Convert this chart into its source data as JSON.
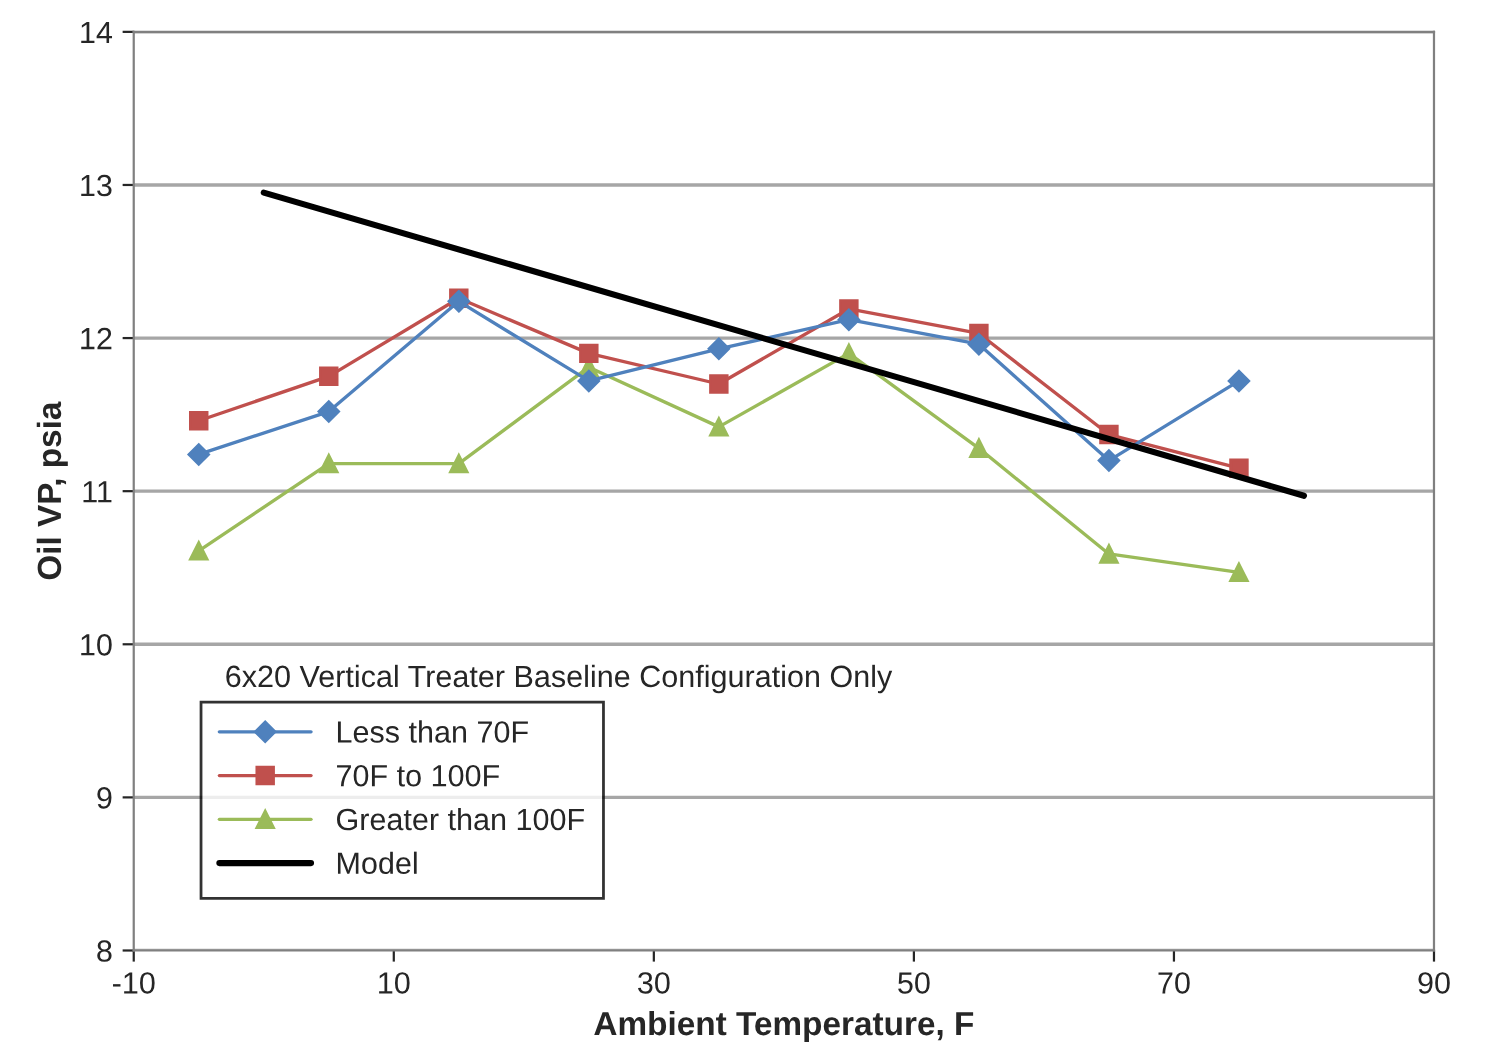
{
  "chart_data": {
    "type": "line",
    "xlabel": "Ambient Temperature, F",
    "ylabel": "Oil VP, psia",
    "annotations": [
      "6x20 Vertical Treater Baseline Configuration Only"
    ],
    "xlim": [
      -10,
      90
    ],
    "xticks": [
      -10,
      10,
      30,
      50,
      70,
      90
    ],
    "ylim": [
      8,
      14
    ],
    "yticks": [
      8,
      9,
      10,
      11,
      12,
      13,
      14
    ],
    "grid": "y",
    "legend": "bottom left",
    "series": [
      {
        "name": "Less than 70F",
        "color": "#4f81bd",
        "marker": "diamond",
        "x": [
          -5,
          5,
          15,
          25,
          35,
          45,
          55,
          65,
          75
        ],
        "values": [
          11.24,
          11.52,
          12.24,
          11.72,
          11.93,
          12.12,
          11.96,
          11.2,
          11.72
        ]
      },
      {
        "name": "70F to 100F",
        "color": "#c0504d",
        "marker": "square",
        "x": [
          -5,
          5,
          15,
          25,
          35,
          45,
          55,
          65,
          75
        ],
        "values": [
          11.46,
          11.75,
          12.26,
          11.9,
          11.7,
          12.19,
          12.03,
          11.37,
          11.15
        ]
      },
      {
        "name": "Greater than 100F",
        "color": "#9bbb59",
        "marker": "triangle",
        "x": [
          -5,
          5,
          15,
          25,
          35,
          45,
          55,
          65,
          75
        ],
        "values": [
          10.61,
          11.18,
          11.18,
          11.81,
          11.42,
          11.9,
          11.28,
          10.59,
          10.47
        ]
      },
      {
        "name": "Model",
        "color": "#000000",
        "marker": "none",
        "x": [
          0,
          80
        ],
        "values": [
          12.95,
          10.97
        ]
      }
    ]
  }
}
